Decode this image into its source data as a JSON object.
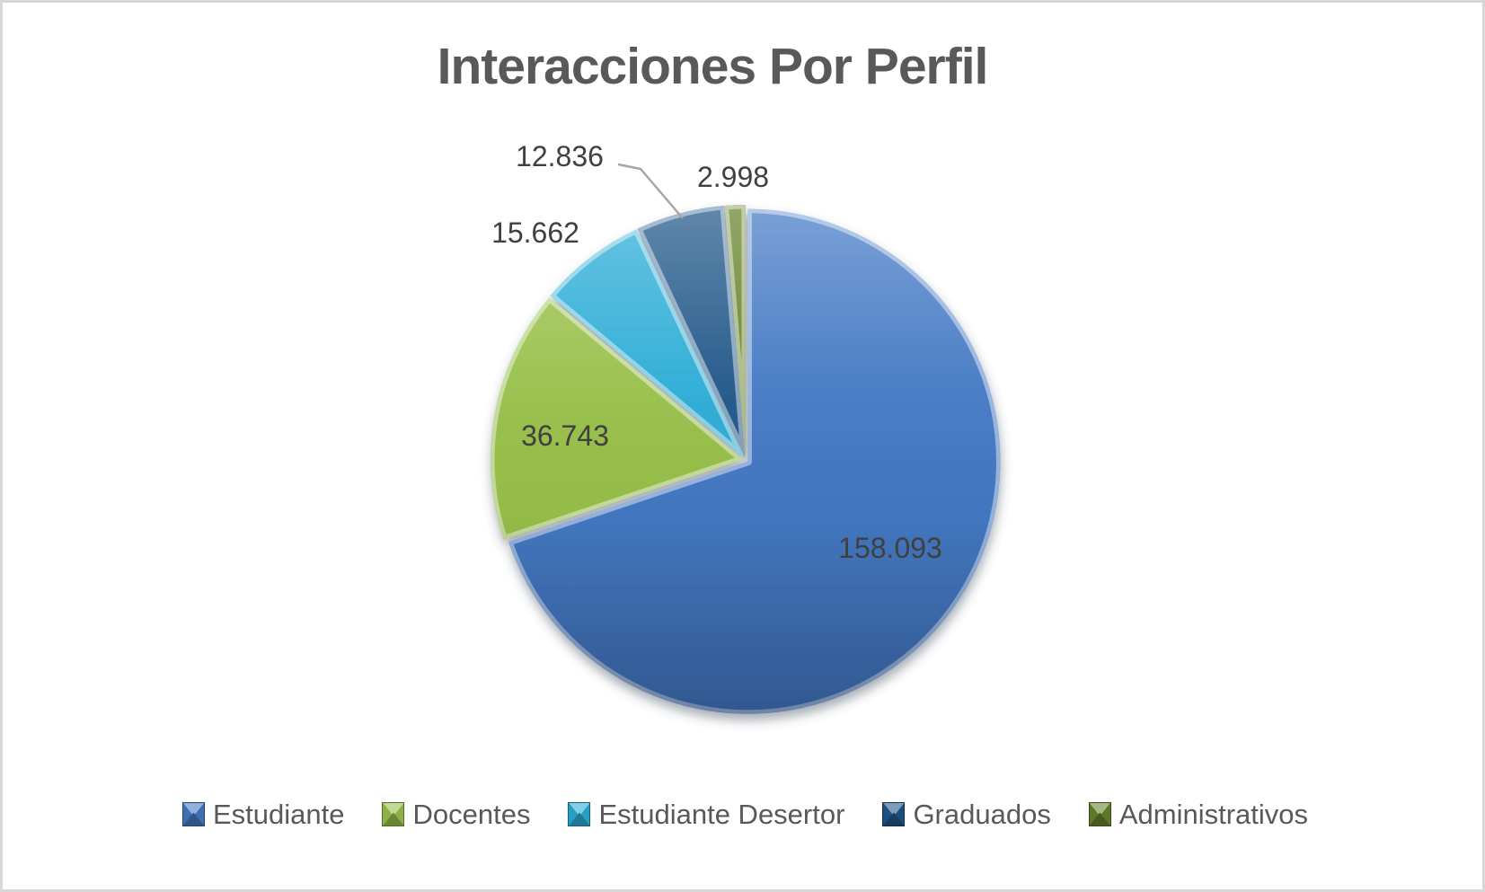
{
  "chart_data": {
    "type": "pie",
    "title": "Interacciones Por Perfil",
    "categories": [
      "Estudiante",
      "Docentes",
      "Estudiante Desertor",
      "Graduados",
      "Administrativos"
    ],
    "values": [
      158093,
      36743,
      15662,
      12836,
      2998
    ],
    "labels": [
      "158.093",
      "36.743",
      "15.662",
      "12.836",
      "2.998"
    ],
    "colors": [
      "#4479C4",
      "#98C04A",
      "#2BACD6",
      "#1F5688",
      "#65822A"
    ],
    "total": 226332,
    "start_angle_deg": 0,
    "direction": "clockwise",
    "legend_position": "bottom",
    "label_number_format": "dot thousands separator (es)",
    "style": "3d-bevel-exploded"
  },
  "theme": {
    "background": "#FFFFFF",
    "border_color": "#D7D7D7",
    "title_color": "#595959",
    "data_label_color": "#404040",
    "legend_text_color": "#595959",
    "leader_line_color": "#A6A6A6"
  }
}
